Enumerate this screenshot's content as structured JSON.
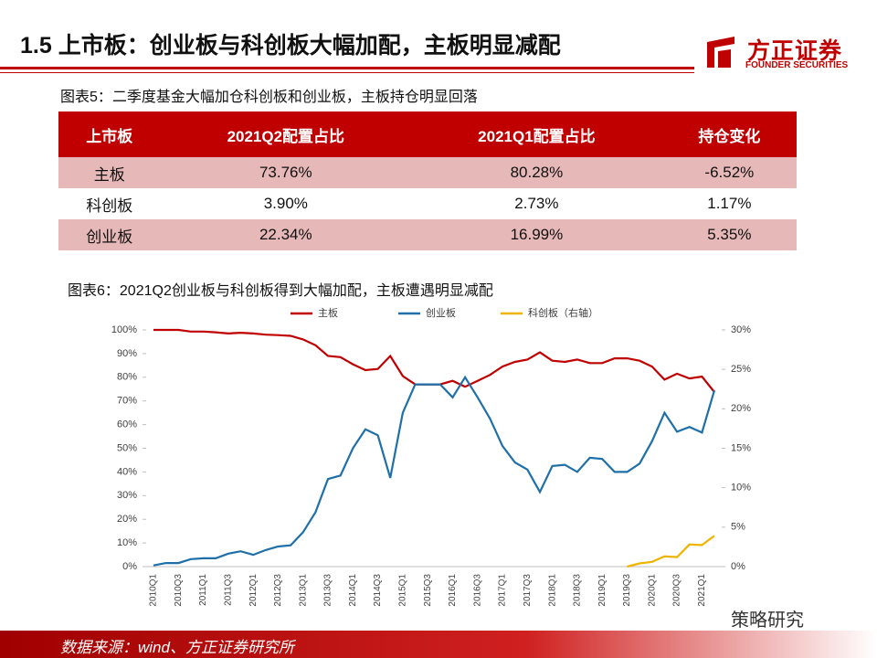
{
  "header": {
    "title": "1.5 上市板：创业板与科创板大幅加配，主板明显减配",
    "logo_cn": "方正证券",
    "logo_en": "FOUNDER SECURITIES"
  },
  "table_caption": "图表5：二季度基金大幅加仓科创板和创业板，主板持仓明显回落",
  "table": {
    "columns": [
      "上市板",
      "2021Q2配置占比",
      "2021Q1配置占比",
      "持仓变化"
    ],
    "rows": [
      [
        "主板",
        "73.76%",
        "80.28%",
        "-6.52%"
      ],
      [
        "科创板",
        "3.90%",
        "2.73%",
        "1.17%"
      ],
      [
        "创业板",
        "22.34%",
        "16.99%",
        "5.35%"
      ]
    ]
  },
  "chart_caption": "图表6：2021Q2创业板与科创板得到大幅加配，主板遭遇明显减配",
  "chart_data": {
    "type": "line",
    "categories": [
      "2010Q1",
      null,
      "2010Q3",
      null,
      "2011Q1",
      null,
      "2011Q3",
      null,
      "2012Q1",
      null,
      "2012Q3",
      null,
      "2013Q1",
      null,
      "2013Q3",
      null,
      "2014Q1",
      null,
      "2014Q3",
      null,
      "2015Q1",
      null,
      "2015Q3",
      null,
      "2016Q1",
      null,
      "2016Q3",
      null,
      "2017Q1",
      null,
      "2017Q3",
      null,
      "2018Q1",
      null,
      "2018Q3",
      null,
      "2019Q1",
      null,
      "2019Q3",
      null,
      "2020Q1",
      null,
      "2020Q3",
      null,
      "2021Q1",
      null
    ],
    "series": [
      {
        "name": "主板",
        "color": "#c00000",
        "axis": "y",
        "values": [
          100,
          100,
          100,
          99.3,
          99.3,
          99,
          98.5,
          98.8,
          98.5,
          98,
          97.8,
          97.5,
          96,
          93.5,
          89,
          88.5,
          85.5,
          83,
          83.5,
          89,
          80.5,
          77,
          77,
          77,
          78.5,
          76,
          78.5,
          81,
          84.5,
          86.5,
          87.5,
          90.5,
          87,
          86.5,
          87.5,
          86,
          86,
          88,
          88,
          87,
          84.5,
          79,
          81.5,
          79.5,
          80.28,
          73.76
        ]
      },
      {
        "name": "创业板",
        "color": "#1f6fa8",
        "axis": "y2",
        "values": [
          0.15,
          0.45,
          0.45,
          0.95,
          1.05,
          1.05,
          1.65,
          1.95,
          1.5,
          2.1,
          2.55,
          2.7,
          4.35,
          6.9,
          11.1,
          11.55,
          15,
          17.4,
          16.65,
          11.25,
          19.5,
          23.1,
          23.1,
          23.1,
          21.45,
          24,
          21.45,
          18.75,
          15.3,
          13.2,
          12.3,
          9.45,
          12.75,
          12.9,
          12,
          13.8,
          13.65,
          12,
          12,
          13.05,
          15.9,
          19.5,
          17.1,
          17.7,
          16.99,
          22.34
        ]
      },
      {
        "name": "科创板（右轴）",
        "color": "#f0b400",
        "axis": "y2",
        "values": [
          null,
          null,
          null,
          null,
          null,
          null,
          null,
          null,
          null,
          null,
          null,
          null,
          null,
          null,
          null,
          null,
          null,
          null,
          null,
          null,
          null,
          null,
          null,
          null,
          null,
          null,
          null,
          null,
          null,
          null,
          null,
          null,
          null,
          null,
          null,
          null,
          null,
          null,
          0,
          0.4,
          0.6,
          1.3,
          1.2,
          2.8,
          2.73,
          3.9
        ]
      }
    ],
    "ylim": [
      0,
      100
    ],
    "yticks": [
      {
        "value": 0,
        "label": "0%"
      },
      {
        "value": 10,
        "label": "10%"
      },
      {
        "value": 20,
        "label": "20%"
      },
      {
        "value": 30,
        "label": "30%"
      },
      {
        "value": 40,
        "label": "40%"
      },
      {
        "value": 50,
        "label": "50%"
      },
      {
        "value": 60,
        "label": "60%"
      },
      {
        "value": 70,
        "label": "70%"
      },
      {
        "value": 80,
        "label": "80%"
      },
      {
        "value": 90,
        "label": "90%"
      },
      {
        "value": 100,
        "label": "100%"
      }
    ],
    "y2lim": [
      0,
      30
    ],
    "y2ticks": [
      {
        "value": 0,
        "label": "0%"
      },
      {
        "value": 5,
        "label": "5%"
      },
      {
        "value": 10,
        "label": "10%"
      },
      {
        "value": 15,
        "label": "15%"
      },
      {
        "value": 20,
        "label": "20%"
      },
      {
        "value": 25,
        "label": "25%"
      },
      {
        "value": 30,
        "label": "30%"
      }
    ]
  },
  "footer": {
    "source": "数据来源：wind、方正证券研究所",
    "watermark": "策略研究"
  }
}
